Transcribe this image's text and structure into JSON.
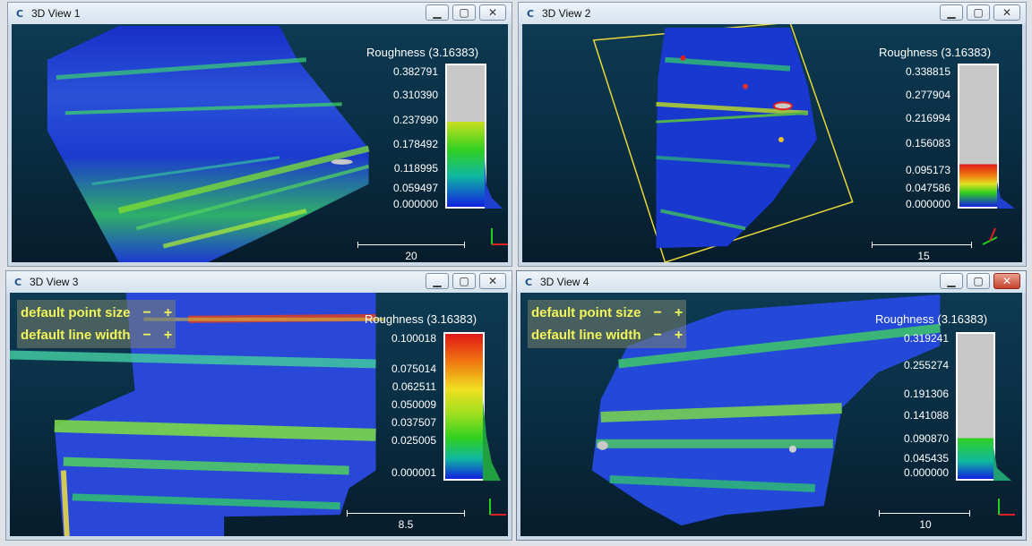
{
  "views": [
    {
      "title": "3D View 1",
      "scalar_title": "Roughness (3.16383)",
      "ticks": [
        "0.382791",
        "0.310390",
        "0.237990",
        "0.178492",
        "0.118995",
        "0.059497",
        "0.000000"
      ],
      "scale_label": "20"
    },
    {
      "title": "3D View 2",
      "scalar_title": "Roughness (3.16383)",
      "ticks": [
        "0.338815",
        "0.277904",
        "0.216994",
        "0.156083",
        "0.095173",
        "0.047586",
        "0.000000"
      ],
      "scale_label": "15"
    },
    {
      "title": "3D View 3",
      "scalar_title": "Roughness (3.16383)",
      "ticks": [
        "0.100018",
        "0.075014",
        "0.062511",
        "0.050009",
        "0.037507",
        "0.025005",
        "0.000001"
      ],
      "scale_label": "8.5",
      "overlay": {
        "point_size": "default point size",
        "line_width": "default line width",
        "minus": "−",
        "plus": "+"
      }
    },
    {
      "title": "3D View 4",
      "scalar_title": "Roughness (3.16383)",
      "ticks": [
        "0.319241",
        "0.255274",
        "0.191306",
        "0.141088",
        "0.090870",
        "0.045435",
        "0.000000"
      ],
      "scale_label": "10",
      "overlay": {
        "point_size": "default point size",
        "line_width": "default line width",
        "minus": "−",
        "plus": "+"
      }
    }
  ],
  "buttons": {
    "minimize": "▁",
    "maximize": "▢",
    "close": "✕"
  },
  "app_icon": "C",
  "colors": {
    "bg_top": "#0d3a52",
    "bg_bottom": "#071c2b",
    "overlay_text": "#f2f55a"
  }
}
